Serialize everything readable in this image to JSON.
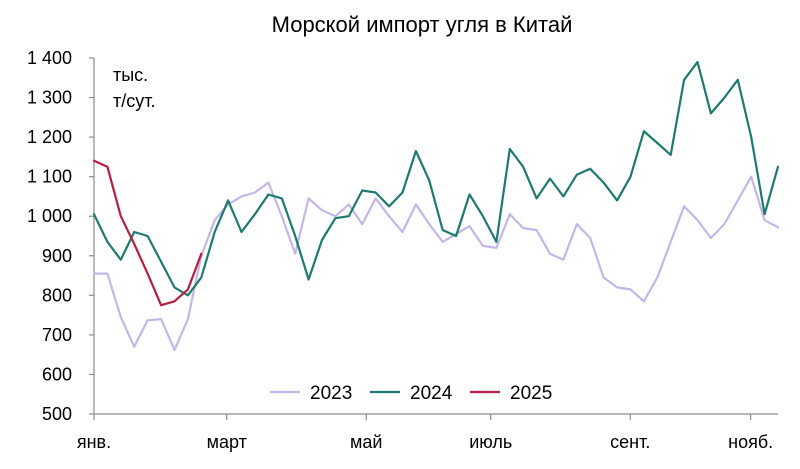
{
  "chart_data": {
    "type": "line",
    "title": "Морской импорт угля в Китай",
    "unit_label_line1": "тыс.",
    "unit_label_line2": "т/сут.",
    "ylim": [
      500,
      1400
    ],
    "yticks": [
      500,
      600,
      700,
      800,
      900,
      1000,
      1100,
      1200,
      1300,
      1400
    ],
    "ytick_labels": [
      "500",
      "600",
      "700",
      "800",
      "900",
      "1 000",
      "1 100",
      "1 200",
      "1 300",
      "1 400"
    ],
    "xlim": [
      0,
      50
    ],
    "xticks": [
      {
        "label": "янв.",
        "x": 0
      },
      {
        "label": "март",
        "x": 9.7
      },
      {
        "label": "май",
        "x": 19.9
      },
      {
        "label": "июль",
        "x": 29.0
      },
      {
        "label": "сент.",
        "x": 39.2
      },
      {
        "label": "нояб.",
        "x": 48.0
      }
    ],
    "grid": false,
    "legend_position": "bottom-center",
    "series": [
      {
        "name": "2023",
        "color": "#c4b7e6",
        "values": [
          855,
          855,
          745,
          670,
          737,
          740,
          662,
          740,
          900,
          990,
          1030,
          1050,
          1060,
          1085,
          1000,
          905,
          1045,
          1015,
          1000,
          1030,
          980,
          1045,
          1000,
          960,
          1030,
          980,
          935,
          955,
          975,
          925,
          920,
          1005,
          970,
          965,
          905,
          890,
          980,
          945,
          845,
          820,
          815,
          785,
          845,
          935,
          1025,
          990,
          945,
          980,
          1040,
          1100,
          990,
          972
        ]
      },
      {
        "name": "2024",
        "color": "#1e7a6e",
        "values": [
          1005,
          935,
          890,
          960,
          950,
          885,
          820,
          800,
          845,
          960,
          1040,
          960,
          1005,
          1055,
          1045,
          950,
          840,
          940,
          995,
          1000,
          1065,
          1060,
          1025,
          1060,
          1165,
          1090,
          965,
          950,
          1055,
          1000,
          935,
          1170,
          1125,
          1045,
          1095,
          1050,
          1105,
          1120,
          1085,
          1040,
          1100,
          1215,
          1185,
          1155,
          1345,
          1390,
          1260,
          1300,
          1345,
          1200,
          1005,
          1125
        ]
      },
      {
        "name": "2025",
        "color": "#b52040",
        "values": [
          1140,
          1125,
          1000,
          930,
          855,
          775,
          785,
          815,
          905
        ]
      }
    ]
  }
}
